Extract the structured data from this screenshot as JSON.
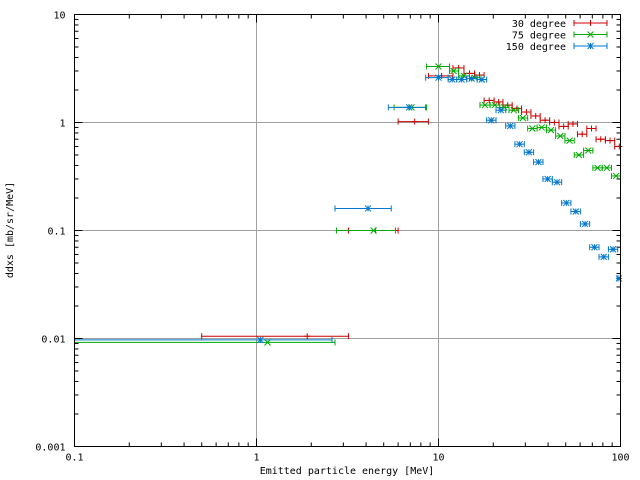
{
  "chart_data": {
    "type": "scatter",
    "xlabel": "Emitted particle energy [MeV]",
    "ylabel": "ddxs [mb/sr/MeV]",
    "xscale": "log",
    "yscale": "log",
    "xlim": [
      0.1,
      100
    ],
    "ylim": [
      0.001,
      10
    ],
    "grid": true,
    "legend": "top-right",
    "x_ticks": [
      {
        "value": 0.1,
        "label": "0.1"
      },
      {
        "value": 1,
        "label": "1"
      },
      {
        "value": 10,
        "label": "10"
      },
      {
        "value": 100,
        "label": "100"
      }
    ],
    "y_ticks": [
      {
        "value": 0.001,
        "label": "0.001"
      },
      {
        "value": 0.01,
        "label": "0.01"
      },
      {
        "value": 0.1,
        "label": "0.1"
      },
      {
        "value": 1,
        "label": "1"
      },
      {
        "value": 10,
        "label": "10"
      }
    ],
    "series": [
      {
        "name": "30 degree",
        "color": "#cc0000",
        "marker": "plus",
        "points": [
          {
            "x": 1.9,
            "y": 0.0105,
            "xmin": 0.5,
            "xmax": 3.2
          },
          {
            "x": 4.5,
            "y": 0.1,
            "xmin": 3.2,
            "xmax": 6.0
          },
          {
            "x": 7.4,
            "y": 1.02,
            "xmin": 6.0,
            "xmax": 8.8
          },
          {
            "x": 10.4,
            "y": 2.7,
            "xmin": 8.8,
            "xmax": 12.0
          },
          {
            "x": 12.9,
            "y": 3.2,
            "xmin": 12.0,
            "xmax": 13.8
          },
          {
            "x": 14.8,
            "y": 2.85,
            "xmin": 13.8,
            "xmax": 15.8
          },
          {
            "x": 16.8,
            "y": 2.75,
            "xmin": 15.8,
            "xmax": 17.8
          },
          {
            "x": 19.0,
            "y": 1.6,
            "xmin": 17.8,
            "xmax": 20.2
          },
          {
            "x": 21.4,
            "y": 1.55,
            "xmin": 20.2,
            "xmax": 22.6
          },
          {
            "x": 24.0,
            "y": 1.45,
            "xmin": 22.6,
            "xmax": 25.4
          },
          {
            "x": 27.0,
            "y": 1.35,
            "xmin": 25.4,
            "xmax": 28.6
          },
          {
            "x": 30.4,
            "y": 1.25,
            "xmin": 28.6,
            "xmax": 32.2
          },
          {
            "x": 34.2,
            "y": 1.15,
            "xmin": 32.2,
            "xmax": 36.2
          },
          {
            "x": 38.5,
            "y": 1.05,
            "xmin": 36.2,
            "xmax": 40.8
          },
          {
            "x": 43.3,
            "y": 1.0,
            "xmin": 40.8,
            "xmax": 45.9
          },
          {
            "x": 48.7,
            "y": 0.92,
            "xmin": 45.9,
            "xmax": 51.6
          },
          {
            "x": 54.8,
            "y": 0.97,
            "xmin": 51.6,
            "xmax": 58.0
          },
          {
            "x": 61.6,
            "y": 0.78,
            "xmin": 58.0,
            "xmax": 65.3
          },
          {
            "x": 69.3,
            "y": 0.88,
            "xmin": 65.3,
            "xmax": 73.4
          },
          {
            "x": 77.9,
            "y": 0.7,
            "xmin": 73.4,
            "xmax": 82.6
          },
          {
            "x": 87.6,
            "y": 0.68,
            "xmin": 82.6,
            "xmax": 92.9
          },
          {
            "x": 98.5,
            "y": 0.6,
            "xmin": 92.9,
            "xmax": 100
          }
        ]
      },
      {
        "name": "75 degree",
        "color": "#00aa00",
        "marker": "cross",
        "points": [
          {
            "x": 1.15,
            "y": 0.0092,
            "xmin": 0.1,
            "xmax": 2.7
          },
          {
            "x": 4.4,
            "y": 0.1,
            "xmin": 2.75,
            "xmax": 5.8
          },
          {
            "x": 7.1,
            "y": 1.38,
            "xmin": 5.7,
            "xmax": 8.6
          },
          {
            "x": 10.0,
            "y": 3.3,
            "xmin": 8.6,
            "xmax": 11.5
          },
          {
            "x": 12.1,
            "y": 3.0,
            "xmin": 11.5,
            "xmax": 12.9
          },
          {
            "x": 13.8,
            "y": 2.7,
            "xmin": 12.9,
            "xmax": 14.8
          },
          {
            "x": 15.8,
            "y": 2.6,
            "xmin": 14.8,
            "xmax": 16.9
          },
          {
            "x": 18.0,
            "y": 1.45,
            "xmin": 16.9,
            "xmax": 19.2
          },
          {
            "x": 20.4,
            "y": 1.45,
            "xmin": 19.2,
            "xmax": 21.7
          },
          {
            "x": 23.0,
            "y": 1.38,
            "xmin": 21.7,
            "xmax": 24.4
          },
          {
            "x": 25.9,
            "y": 1.3,
            "xmin": 24.4,
            "xmax": 27.5
          },
          {
            "x": 29.1,
            "y": 1.1,
            "xmin": 27.5,
            "xmax": 30.9
          },
          {
            "x": 32.8,
            "y": 0.88,
            "xmin": 30.9,
            "xmax": 34.8
          },
          {
            "x": 36.9,
            "y": 0.9,
            "xmin": 34.8,
            "xmax": 39.2
          },
          {
            "x": 41.5,
            "y": 0.85,
            "xmin": 39.2,
            "xmax": 44.0
          },
          {
            "x": 46.7,
            "y": 0.75,
            "xmin": 44.0,
            "xmax": 49.5
          },
          {
            "x": 52.5,
            "y": 0.68,
            "xmin": 49.5,
            "xmax": 55.7
          },
          {
            "x": 59.1,
            "y": 0.5,
            "xmin": 55.7,
            "xmax": 62.7
          },
          {
            "x": 66.5,
            "y": 0.55,
            "xmin": 62.7,
            "xmax": 70.5
          },
          {
            "x": 74.8,
            "y": 0.38,
            "xmin": 70.5,
            "xmax": 79.3
          },
          {
            "x": 84.1,
            "y": 0.38,
            "xmin": 79.3,
            "xmax": 89.2
          },
          {
            "x": 94.6,
            "y": 0.32,
            "xmin": 89.2,
            "xmax": 100
          }
        ]
      },
      {
        "name": "150 degree",
        "color": "#0077cc",
        "marker": "star",
        "points": [
          {
            "x": 1.05,
            "y": 0.0097,
            "xmin": 0.1,
            "xmax": 2.6
          },
          {
            "x": 4.1,
            "y": 0.16,
            "xmin": 2.7,
            "xmax": 5.5
          },
          {
            "x": 6.9,
            "y": 1.38,
            "xmin": 5.3,
            "xmax": 8.5
          },
          {
            "x": 10.0,
            "y": 2.6,
            "xmin": 8.5,
            "xmax": 11.3
          },
          {
            "x": 11.9,
            "y": 2.5,
            "xmin": 11.3,
            "xmax": 12.6
          },
          {
            "x": 13.4,
            "y": 2.5,
            "xmin": 12.6,
            "xmax": 14.3
          },
          {
            "x": 15.2,
            "y": 2.55,
            "xmin": 14.3,
            "xmax": 16.3
          },
          {
            "x": 17.3,
            "y": 2.5,
            "xmin": 16.3,
            "xmax": 18.4
          },
          {
            "x": 19.5,
            "y": 1.05,
            "xmin": 18.4,
            "xmax": 20.7
          },
          {
            "x": 22.0,
            "y": 1.3,
            "xmin": 20.7,
            "xmax": 23.4
          },
          {
            "x": 24.8,
            "y": 0.93,
            "xmin": 23.4,
            "xmax": 26.3
          },
          {
            "x": 27.9,
            "y": 0.63,
            "xmin": 26.3,
            "xmax": 29.6
          },
          {
            "x": 31.4,
            "y": 0.53,
            "xmin": 29.6,
            "xmax": 33.3
          },
          {
            "x": 35.4,
            "y": 0.43,
            "xmin": 33.3,
            "xmax": 37.5
          },
          {
            "x": 39.8,
            "y": 0.3,
            "xmin": 37.5,
            "xmax": 42.2
          },
          {
            "x": 44.8,
            "y": 0.28,
            "xmin": 42.2,
            "xmax": 47.5
          },
          {
            "x": 50.4,
            "y": 0.18,
            "xmin": 47.5,
            "xmax": 53.4
          },
          {
            "x": 56.8,
            "y": 0.15,
            "xmin": 53.4,
            "xmax": 60.2
          },
          {
            "x": 63.9,
            "y": 0.115,
            "xmin": 60.2,
            "xmax": 67.7
          },
          {
            "x": 71.9,
            "y": 0.07,
            "xmin": 67.7,
            "xmax": 76.2
          },
          {
            "x": 80.9,
            "y": 0.057,
            "xmin": 76.2,
            "xmax": 85.8
          },
          {
            "x": 91.0,
            "y": 0.067,
            "xmin": 85.8,
            "xmax": 96.5
          },
          {
            "x": 98.0,
            "y": 0.036,
            "xmin": 96.0,
            "xmax": 100
          }
        ]
      }
    ]
  }
}
